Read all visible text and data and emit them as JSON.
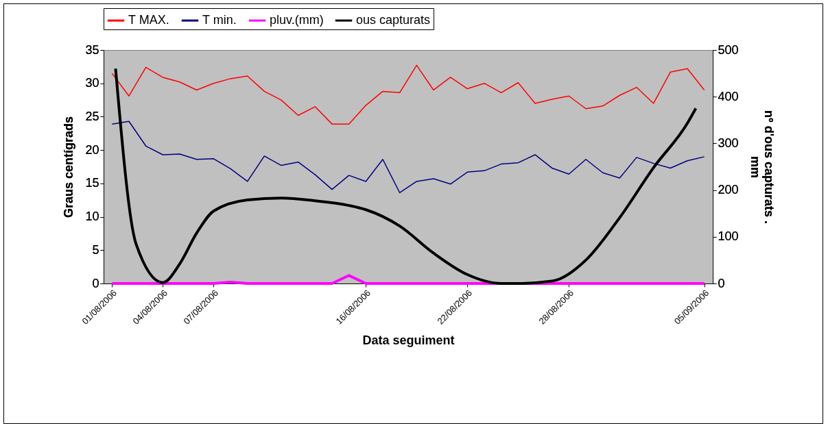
{
  "chart_data": {
    "type": "line",
    "xlabel": "Data seguiment",
    "ylabel": "Graus centígrads",
    "y2label": "nº d'ous capturats   .\nmm",
    "x": [
      "2006-08-01",
      "2006-08-02",
      "2006-08-03",
      "2006-08-04",
      "2006-08-05",
      "2006-08-06",
      "2006-08-07",
      "2006-08-08",
      "2006-08-09",
      "2006-08-10",
      "2006-08-11",
      "2006-08-12",
      "2006-08-13",
      "2006-08-14",
      "2006-08-15",
      "2006-08-16",
      "2006-08-17",
      "2006-08-18",
      "2006-08-19",
      "2006-08-20",
      "2006-08-21",
      "2006-08-22",
      "2006-08-23",
      "2006-08-24",
      "2006-08-25",
      "2006-08-26",
      "2006-08-27",
      "2006-08-28",
      "2006-08-29",
      "2006-08-30",
      "2006-08-31",
      "2006-09-01",
      "2006-09-02",
      "2006-09-03",
      "2006-09-04",
      "2006-09-05"
    ],
    "series": [
      {
        "name": "T MAX.",
        "color": "#ff0000",
        "values": [
          31.5,
          28.1,
          32.4,
          30.9,
          30.2,
          29.0,
          30.0,
          30.7,
          31.1,
          28.8,
          27.5,
          25.2,
          26.5,
          23.9,
          23.9,
          26.7,
          28.8,
          28.6,
          32.7,
          29.0,
          30.9,
          29.2,
          30.0,
          28.6,
          30.1,
          27.0,
          27.6,
          28.1,
          26.2,
          26.6,
          28.2,
          29.4,
          27.0,
          31.7,
          32.2,
          29.0
        ]
      },
      {
        "name": "T min.",
        "color": "#000080",
        "values": [
          23.9,
          24.3,
          20.6,
          19.3,
          19.4,
          18.6,
          18.7,
          17.2,
          15.3,
          19.1,
          17.7,
          18.2,
          16.3,
          14.1,
          16.2,
          15.3,
          18.6,
          13.6,
          15.3,
          15.7,
          14.9,
          16.7,
          16.9,
          17.9,
          18.1,
          19.3,
          17.3,
          16.4,
          18.6,
          16.6,
          15.8,
          18.9,
          18.0,
          17.3,
          18.4,
          19.0
        ]
      },
      {
        "name": "pluv.(mm)",
        "color": "#ff00ff",
        "values": [
          0,
          0,
          0,
          0,
          0,
          0,
          0,
          0.2,
          0,
          0,
          0,
          0,
          0,
          0,
          1.2,
          0,
          0,
          0,
          0,
          0,
          0,
          0,
          0,
          0,
          0,
          0,
          0,
          0,
          0,
          0,
          0,
          0,
          0,
          0,
          0,
          0
        ]
      },
      {
        "name": "ous capturats",
        "color": "#000000",
        "axis": "y2",
        "x": [
          "2006-08-01T05:00",
          "2006-08-02T10:00",
          "2006-08-04",
          "2006-08-05",
          "2006-08-06",
          "2006-08-07",
          "2006-08-09",
          "2006-08-11",
          "2006-08-13",
          "2006-08-15",
          "2006-08-16",
          "2006-08-18",
          "2006-08-20",
          "2006-08-22",
          "2006-08-24",
          "2006-08-25",
          "2006-08-27",
          "2006-08-29",
          "2006-08-31",
          "2006-09-02",
          "2006-09-04",
          "2006-09-04T12:00"
        ],
        "values": [
          460,
          85,
          2,
          42,
          108,
          155,
          179,
          183,
          177,
          167,
          158,
          123,
          65,
          19,
          0,
          0,
          5,
          50,
          141,
          248,
          343,
          375
        ]
      }
    ],
    "xlim": [
      "2006-07-31T12:00",
      "2006-09-05T12:00"
    ],
    "xticks": [
      {
        "value": "2006-08-01",
        "label": "01/08/2006"
      },
      {
        "value": "2006-08-04",
        "label": "04/08/2006"
      },
      {
        "value": "2006-08-07",
        "label": "07/08/2006"
      },
      {
        "value": "2006-08-16",
        "label": "16/08/2006"
      },
      {
        "value": "2006-08-22",
        "label": "22/08/2006"
      },
      {
        "value": "2006-08-28",
        "label": "28/08/2006"
      },
      {
        "value": "2006-09-05",
        "label": "05/09/2006"
      }
    ],
    "ylim": [
      0,
      35
    ],
    "yticks": [
      0,
      5,
      10,
      15,
      20,
      25,
      30,
      35
    ],
    "y2lim": [
      0,
      500
    ],
    "y2ticks": [
      0,
      100,
      200,
      300,
      400,
      500
    ],
    "legend": "top",
    "grid": false
  }
}
